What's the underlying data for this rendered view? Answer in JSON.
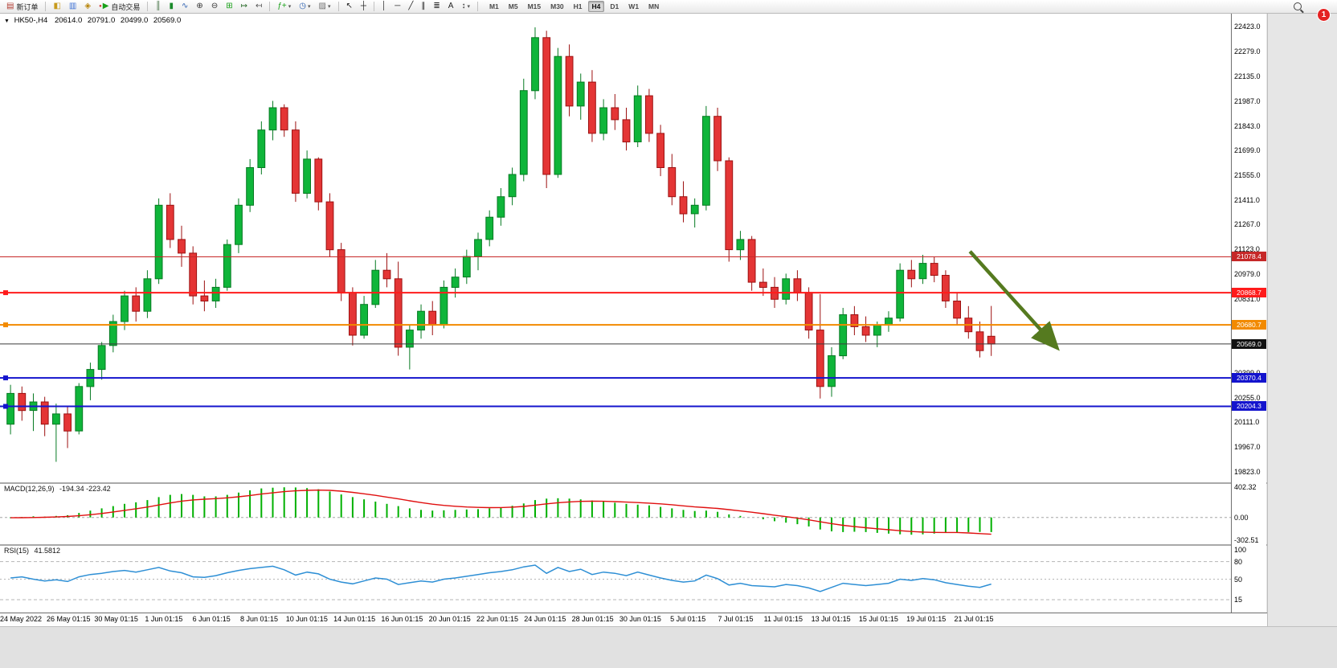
{
  "toolbar": {
    "buttons": [
      {
        "name": "new-order",
        "label": "新订单",
        "glyph": "▤",
        "color": "#b03a30"
      },
      {
        "sep": true
      },
      {
        "name": "market-watch",
        "glyph": "◧",
        "color": "#c79a1c"
      },
      {
        "name": "data-window",
        "glyph": "▥",
        "color": "#3b6fd4"
      },
      {
        "name": "navigator",
        "glyph": "◈",
        "color": "#b8860b"
      },
      {
        "name": "autotrading",
        "label": "自动交易",
        "glyph": "▶",
        "color": "#18a018",
        "glyph2": "●",
        "glyph2_color": "#d03030"
      },
      {
        "sep": true
      },
      {
        "name": "bar-chart",
        "glyph": "║",
        "color": "#3a6a3a"
      },
      {
        "name": "candlestick-chart",
        "glyph": "▮",
        "color": "#1a8a2a"
      },
      {
        "name": "line-chart",
        "glyph": "∿",
        "color": "#2b5fb0"
      },
      {
        "name": "zoom-in",
        "glyph": "⊕",
        "color": "#333333"
      },
      {
        "name": "zoom-out",
        "glyph": "⊖",
        "color": "#333333"
      },
      {
        "name": "tile-windows",
        "glyph": "⊞",
        "color": "#18a018"
      },
      {
        "name": "auto-scroll",
        "glyph": "↦",
        "color": "#2f6f2f"
      },
      {
        "name": "chart-shift",
        "glyph": "↤",
        "color": "#555555"
      },
      {
        "sep": true
      },
      {
        "name": "indicators",
        "glyph": "ƒ+",
        "color": "#18a018",
        "dropdown": true
      },
      {
        "name": "periods",
        "glyph": "◷",
        "color": "#2b5fb0",
        "dropdown": true
      },
      {
        "name": "templates",
        "glyph": "▨",
        "color": "#707070",
        "dropdown": true
      },
      {
        "sep": true
      },
      {
        "name": "cursor",
        "glyph": "↖",
        "color": "#222222"
      },
      {
        "name": "crosshair",
        "glyph": "┼",
        "color": "#222222"
      },
      {
        "sep": true
      },
      {
        "name": "vertical-line",
        "glyph": "│",
        "color": "#222222"
      },
      {
        "name": "horizontal-line",
        "glyph": "─",
        "color": "#222222"
      },
      {
        "name": "trendline",
        "glyph": "╱",
        "color": "#222222"
      },
      {
        "name": "channel",
        "glyph": "∥",
        "color": "#222222"
      },
      {
        "name": "fibonacci",
        "glyph": "≣",
        "color": "#222222"
      },
      {
        "name": "text",
        "glyph": "A",
        "color": "#222222"
      },
      {
        "name": "arrows",
        "glyph": "↕",
        "color": "#222222",
        "dropdown": true
      },
      {
        "sep": true
      }
    ],
    "timeframes": [
      "M1",
      "M5",
      "M15",
      "M30",
      "H1",
      "H4",
      "D1",
      "W1",
      "MN"
    ],
    "active_timeframe": "H4",
    "notification_count": "1"
  },
  "header": {
    "collapse_glyph": "▼",
    "symbol": "HK50-,H4",
    "open": "20614.0",
    "high": "20791.0",
    "low": "20499.0",
    "close": "20569.0"
  },
  "chart_data": {
    "type": "candlestick",
    "symbol": "HK50-",
    "timeframe": "H4",
    "current": {
      "open": 20614.0,
      "high": 20791.0,
      "low": 20499.0,
      "close": 20569.0
    },
    "price_range": [
      19760,
      22500
    ],
    "candle_colors": {
      "up": "#0fb53a",
      "up_border": "#067a22",
      "down": "#e43535",
      "down_border": "#9c1010"
    },
    "candles": [
      [
        20100,
        20330,
        20040,
        20280
      ],
      [
        20280,
        20320,
        20120,
        20180
      ],
      [
        20180,
        20280,
        20060,
        20230
      ],
      [
        20230,
        20260,
        20030,
        20100
      ],
      [
        20100,
        20220,
        19880,
        20160
      ],
      [
        20160,
        20200,
        19960,
        20060
      ],
      [
        20060,
        20340,
        20040,
        20320
      ],
      [
        20320,
        20460,
        20240,
        20420
      ],
      [
        20420,
        20580,
        20360,
        20560
      ],
      [
        20560,
        20740,
        20520,
        20700
      ],
      [
        20700,
        20880,
        20650,
        20850
      ],
      [
        20850,
        20900,
        20700,
        20760
      ],
      [
        20760,
        21000,
        20720,
        20950
      ],
      [
        20950,
        21420,
        20920,
        21380
      ],
      [
        21380,
        21450,
        21130,
        21180
      ],
      [
        21180,
        21260,
        21020,
        21100
      ],
      [
        21100,
        21140,
        20800,
        20850
      ],
      [
        20850,
        20940,
        20760,
        20820
      ],
      [
        20820,
        20950,
        20780,
        20900
      ],
      [
        20900,
        21180,
        20880,
        21150
      ],
      [
        21150,
        21420,
        21100,
        21380
      ],
      [
        21380,
        21650,
        21340,
        21600
      ],
      [
        21600,
        21870,
        21560,
        21820
      ],
      [
        21820,
        21990,
        21760,
        21950
      ],
      [
        21950,
        21970,
        21780,
        21820
      ],
      [
        21820,
        21870,
        21400,
        21450
      ],
      [
        21450,
        21700,
        21420,
        21650
      ],
      [
        21650,
        21660,
        21350,
        21400
      ],
      [
        21400,
        21450,
        21080,
        21120
      ],
      [
        21120,
        21160,
        20820,
        20870
      ],
      [
        20870,
        20900,
        20560,
        20620
      ],
      [
        20620,
        20850,
        20600,
        20800
      ],
      [
        20800,
        21060,
        20780,
        21000
      ],
      [
        21000,
        21100,
        20900,
        20950
      ],
      [
        20950,
        21050,
        20500,
        20550
      ],
      [
        20550,
        20680,
        20420,
        20650
      ],
      [
        20650,
        20800,
        20600,
        20760
      ],
      [
        20760,
        20820,
        20620,
        20680
      ],
      [
        20680,
        20940,
        20660,
        20900
      ],
      [
        20900,
        21010,
        20840,
        20960
      ],
      [
        20960,
        21120,
        20920,
        21080
      ],
      [
        21080,
        21220,
        21000,
        21180
      ],
      [
        21180,
        21350,
        21140,
        21310
      ],
      [
        21310,
        21480,
        21260,
        21430
      ],
      [
        21430,
        21600,
        21380,
        21560
      ],
      [
        21560,
        22120,
        21520,
        22050
      ],
      [
        22050,
        22420,
        22000,
        22360
      ],
      [
        22360,
        22400,
        21480,
        21560
      ],
      [
        21560,
        22300,
        21540,
        22250
      ],
      [
        22250,
        22320,
        21900,
        21960
      ],
      [
        21960,
        22150,
        21880,
        22100
      ],
      [
        22100,
        22170,
        21750,
        21800
      ],
      [
        21800,
        22000,
        21760,
        21950
      ],
      [
        21950,
        22030,
        21820,
        21880
      ],
      [
        21880,
        21950,
        21700,
        21750
      ],
      [
        21750,
        22080,
        21720,
        22020
      ],
      [
        22020,
        22060,
        21750,
        21800
      ],
      [
        21800,
        21850,
        21550,
        21600
      ],
      [
        21600,
        21680,
        21380,
        21430
      ],
      [
        21430,
        21520,
        21280,
        21330
      ],
      [
        21330,
        21420,
        21250,
        21380
      ],
      [
        21380,
        21960,
        21350,
        21900
      ],
      [
        21900,
        21950,
        21580,
        21640
      ],
      [
        21640,
        21660,
        21050,
        21120
      ],
      [
        21120,
        21230,
        21060,
        21180
      ],
      [
        21180,
        21200,
        20880,
        20930
      ],
      [
        20930,
        21010,
        20850,
        20900
      ],
      [
        20900,
        20960,
        20780,
        20830
      ],
      [
        20830,
        20980,
        20800,
        20950
      ],
      [
        20950,
        21000,
        20820,
        20870
      ],
      [
        20870,
        20900,
        20600,
        20650
      ],
      [
        20650,
        20860,
        20250,
        20320
      ],
      [
        20320,
        20550,
        20260,
        20500
      ],
      [
        20500,
        20780,
        20480,
        20740
      ],
      [
        20740,
        20790,
        20620,
        20670
      ],
      [
        20670,
        20730,
        20580,
        20620
      ],
      [
        20620,
        20700,
        20550,
        20680
      ],
      [
        20680,
        20760,
        20640,
        20720
      ],
      [
        20720,
        21040,
        20700,
        21000
      ],
      [
        21000,
        21060,
        20900,
        20950
      ],
      [
        20950,
        21090,
        20920,
        21040
      ],
      [
        21040,
        21080,
        20930,
        20970
      ],
      [
        20970,
        21000,
        20780,
        20820
      ],
      [
        20820,
        20870,
        20680,
        20720
      ],
      [
        20720,
        20790,
        20600,
        20640
      ],
      [
        20640,
        20700,
        20490,
        20530
      ],
      [
        20614,
        20791,
        20499,
        20569
      ]
    ],
    "time_labels": [
      "24 May 2022",
      "26 May 01:15",
      "30 May 01:15",
      "1 Jun 01:15",
      "6 Jun 01:15",
      "8 Jun 01:15",
      "10 Jun 01:15",
      "14 Jun 01:15",
      "16 Jun 01:15",
      "20 Jun 01:15",
      "22 Jun 01:15",
      "24 Jun 01:15",
      "28 Jun 01:15",
      "30 Jun 01:15",
      "5 Jul 01:15",
      "7 Jul 01:15",
      "11 Jul 01:15",
      "13 Jul 01:15",
      "15 Jul 01:15",
      "19 Jul 01:15",
      "21 Jul 01:15"
    ],
    "price_ticks": [
      22423.0,
      22279.0,
      22135.0,
      21987.0,
      21843.0,
      21699.0,
      21555.0,
      21411.0,
      21267.0,
      21123.0,
      20979.0,
      20831.0,
      20399.0,
      20255.0,
      20111.0,
      19967.0,
      19823.0
    ],
    "levels": [
      {
        "price": 21078.4,
        "color": "#c62828",
        "width": 1,
        "handle": false
      },
      {
        "price": 20868.7,
        "color": "#ff1b1b",
        "width": 2,
        "handle": true
      },
      {
        "price": 20680.7,
        "color": "#f28a00",
        "width": 2,
        "handle": true
      },
      {
        "price": 20569.0,
        "color": "#3c3c3c",
        "width": 1,
        "handle": false,
        "badge": "#111111"
      },
      {
        "price": 20370.4,
        "color": "#1414cd",
        "width": 2,
        "handle": true
      },
      {
        "price": 20204.3,
        "color": "#1414cd",
        "width": 2,
        "handle": true
      }
    ],
    "arrow": {
      "x1_frac": 0.788,
      "price1": 21110,
      "x2_frac": 0.857,
      "price2": 20560,
      "color": "#557a1f",
      "width": 4.5
    },
    "macd": {
      "label": "MACD(12,26,9)",
      "values_label": "-194.34 -223.42",
      "range": [
        -302.51,
        402.32
      ],
      "ticks": [
        402.32,
        0,
        -302.51
      ],
      "hist_color": "#00b000",
      "signal_color": "#e01010",
      "histogram": [
        -10,
        5,
        15,
        10,
        20,
        30,
        60,
        90,
        120,
        150,
        180,
        200,
        230,
        270,
        300,
        310,
        300,
        280,
        280,
        300,
        330,
        360,
        385,
        395,
        400,
        398,
        390,
        375,
        345,
        305,
        270,
        240,
        210,
        180,
        150,
        120,
        100,
        90,
        95,
        100,
        105,
        110,
        120,
        135,
        155,
        185,
        230,
        250,
        255,
        250,
        240,
        225,
        210,
        195,
        180,
        170,
        160,
        140,
        120,
        100,
        85,
        90,
        75,
        40,
        20,
        0,
        -25,
        -50,
        -70,
        -90,
        -120,
        -160,
        -185,
        -195,
        -190,
        -195,
        -205,
        -215,
        -225,
        -230,
        -225,
        -215,
        -205,
        -200,
        -195,
        -192,
        -194.34
      ],
      "signal": [
        -5,
        -4,
        -1,
        2,
        6,
        12,
        22,
        36,
        52,
        72,
        94,
        115,
        138,
        165,
        192,
        216,
        233,
        242,
        250,
        260,
        274,
        291,
        310,
        327,
        342,
        353,
        360,
        363,
        360,
        349,
        333,
        314,
        293,
        270,
        246,
        221,
        197,
        176,
        160,
        148,
        139,
        133,
        130,
        131,
        136,
        146,
        163,
        180,
        195,
        206,
        213,
        215,
        214,
        210,
        204,
        197,
        190,
        180,
        168,
        154,
        140,
        130,
        119,
        103,
        86,
        69,
        50,
        30,
        10,
        -10,
        -32,
        -58,
        -83,
        -105,
        -122,
        -137,
        -151,
        -164,
        -176,
        -187,
        -195,
        -199,
        -200,
        -200,
        -206,
        -215,
        -223.42
      ]
    },
    "rsi": {
      "label": "RSI(15)",
      "value_label": "41.5812",
      "range": [
        0,
        100
      ],
      "ticks": [
        100,
        80,
        50,
        15
      ],
      "levels": [
        80,
        50,
        15
      ],
      "color": "#2e8fd5",
      "values": [
        52,
        54,
        50,
        47,
        49,
        46,
        54,
        58,
        60,
        63,
        65,
        62,
        66,
        70,
        64,
        61,
        54,
        53,
        56,
        61,
        65,
        68,
        70,
        72,
        66,
        57,
        62,
        59,
        50,
        45,
        42,
        47,
        52,
        50,
        41,
        44,
        47,
        45,
        50,
        52,
        55,
        58,
        61,
        63,
        66,
        71,
        74,
        60,
        70,
        63,
        67,
        58,
        62,
        60,
        56,
        62,
        57,
        52,
        48,
        45,
        47,
        57,
        51,
        40,
        43,
        39,
        38,
        37,
        41,
        39,
        35,
        29,
        36,
        43,
        41,
        39,
        41,
        43,
        50,
        48,
        51,
        49,
        44,
        41,
        38,
        36,
        41.5812
      ]
    }
  }
}
